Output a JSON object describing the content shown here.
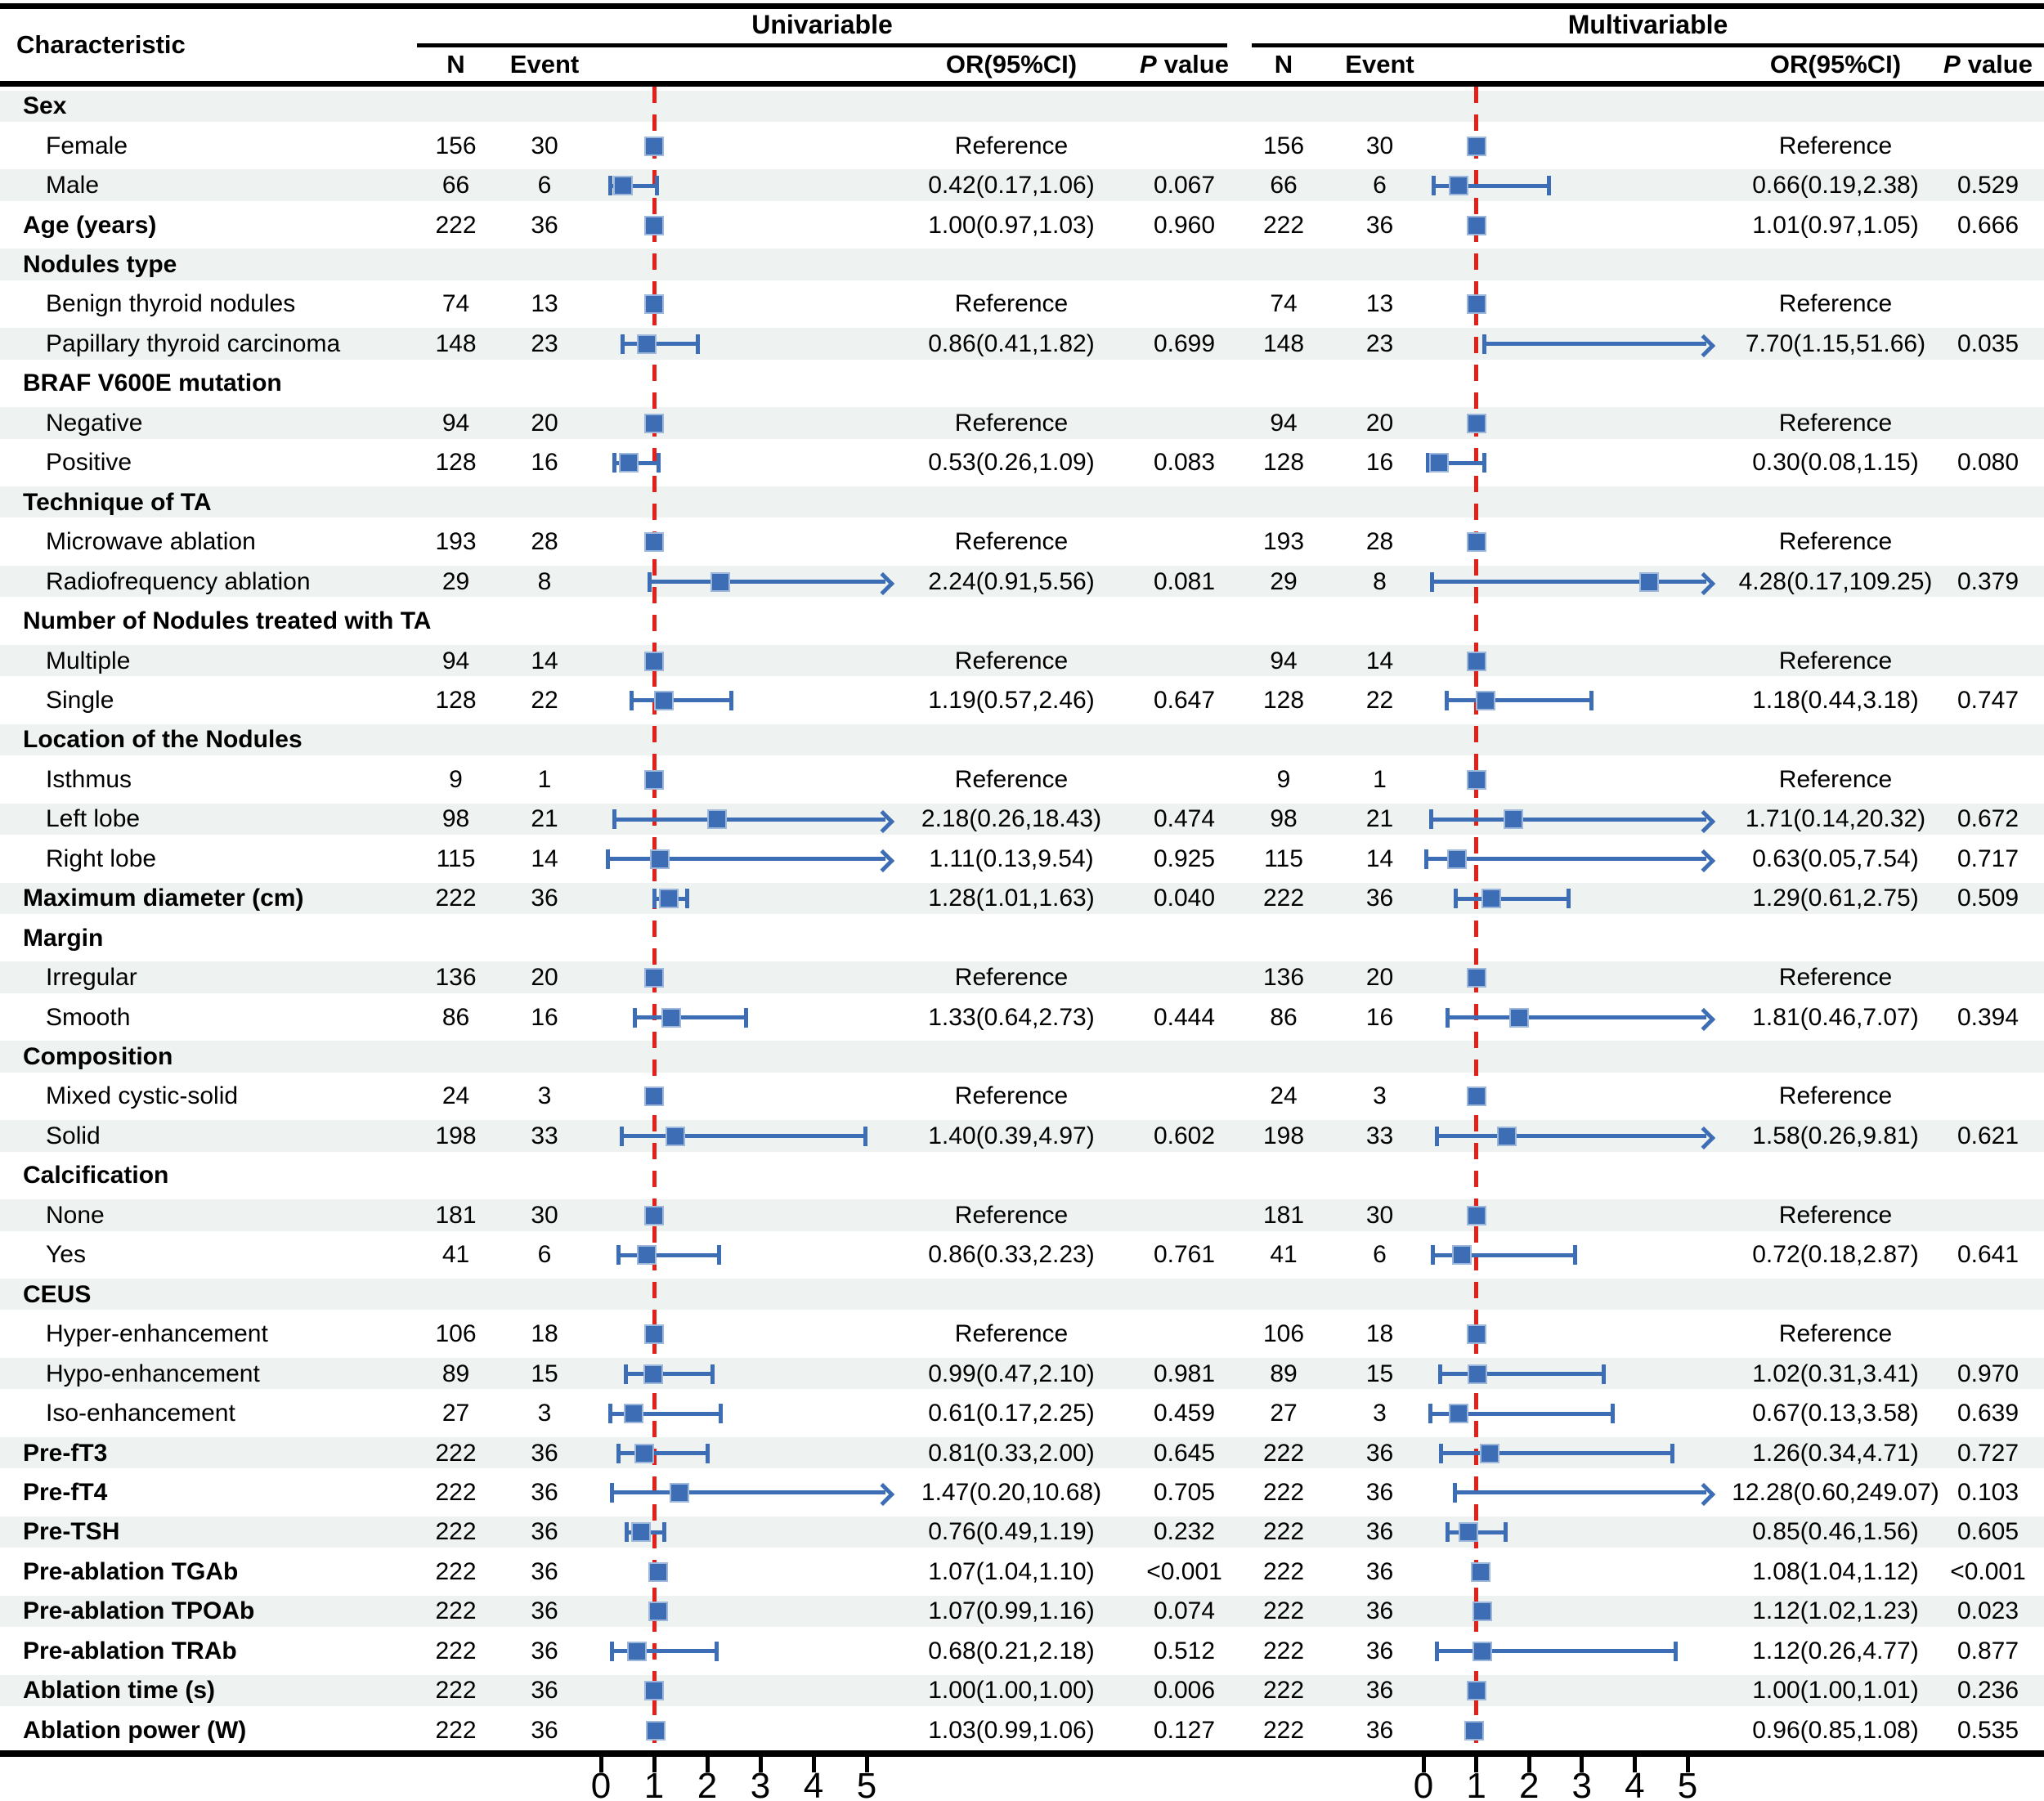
{
  "figure": {
    "char_header": "Characteristic",
    "uni_header": "Univariable",
    "multi_header": "Multivariable",
    "col_n": "N",
    "col_event": "Event",
    "col_or": "OR(95%CI)",
    "col_p_italic": "P",
    "col_p_rest": "value"
  },
  "chart_data": {
    "type": "forest",
    "panels": [
      "Univariable",
      "Multivariable"
    ],
    "axis": {
      "ticks": [
        0,
        1,
        2,
        3,
        4,
        5
      ],
      "min": 0,
      "max": 5,
      "reference_line": 1
    },
    "colors": {
      "marker": "#3c6db5",
      "ci": "#3c6db5",
      "reference_line": "#e32119",
      "stripe": "#eef2f1"
    },
    "rows": [
      {
        "label": "Sex",
        "style": "group"
      },
      {
        "label": "Female",
        "style": "item",
        "uni": {
          "n": "156",
          "event": "30",
          "or": "Reference",
          "p": "",
          "ref": true
        },
        "multi": {
          "n": "156",
          "event": "30",
          "or": "Reference",
          "p": "",
          "ref": true
        }
      },
      {
        "label": "Male",
        "style": "item",
        "uni": {
          "n": "66",
          "event": "6",
          "or": "0.42(0.17,1.06)",
          "p": "0.067",
          "est": 0.42,
          "lo": 0.17,
          "hi": 1.06
        },
        "multi": {
          "n": "66",
          "event": "6",
          "or": "0.66(0.19,2.38)",
          "p": "0.529",
          "est": 0.66,
          "lo": 0.19,
          "hi": 2.38
        }
      },
      {
        "label": "Age (years)",
        "style": "bold",
        "uni": {
          "n": "222",
          "event": "36",
          "or": "1.00(0.97,1.03)",
          "p": "0.960",
          "est": 1.0,
          "lo": 0.97,
          "hi": 1.03
        },
        "multi": {
          "n": "222",
          "event": "36",
          "or": "1.01(0.97,1.05)",
          "p": "0.666",
          "est": 1.01,
          "lo": 0.97,
          "hi": 1.05
        }
      },
      {
        "label": "Nodules type",
        "style": "group"
      },
      {
        "label": "Benign thyroid nodules",
        "style": "item",
        "uni": {
          "n": "74",
          "event": "13",
          "or": "Reference",
          "p": "",
          "ref": true
        },
        "multi": {
          "n": "74",
          "event": "13",
          "or": "Reference",
          "p": "",
          "ref": true
        }
      },
      {
        "label": "Papillary thyroid carcinoma",
        "style": "item",
        "uni": {
          "n": "148",
          "event": "23",
          "or": "0.86(0.41,1.82)",
          "p": "0.699",
          "est": 0.86,
          "lo": 0.41,
          "hi": 1.82
        },
        "multi": {
          "n": "148",
          "event": "23",
          "or": "7.70(1.15,51.66)",
          "p": "0.035",
          "est": 7.7,
          "lo": 1.15,
          "hi": 51.66
        }
      },
      {
        "label": "BRAF V600E mutation",
        "style": "group"
      },
      {
        "label": "Negative",
        "style": "item",
        "uni": {
          "n": "94",
          "event": "20",
          "or": "Reference",
          "p": "",
          "ref": true
        },
        "multi": {
          "n": "94",
          "event": "20",
          "or": "Reference",
          "p": "",
          "ref": true
        }
      },
      {
        "label": "Positive",
        "style": "item",
        "uni": {
          "n": "128",
          "event": "16",
          "or": "0.53(0.26,1.09)",
          "p": "0.083",
          "est": 0.53,
          "lo": 0.26,
          "hi": 1.09
        },
        "multi": {
          "n": "128",
          "event": "16",
          "or": "0.30(0.08,1.15)",
          "p": "0.080",
          "est": 0.3,
          "lo": 0.08,
          "hi": 1.15
        }
      },
      {
        "label": "Technique of TA",
        "style": "group"
      },
      {
        "label": "Microwave ablation",
        "style": "item",
        "uni": {
          "n": "193",
          "event": "28",
          "or": "Reference",
          "p": "",
          "ref": true
        },
        "multi": {
          "n": "193",
          "event": "28",
          "or": "Reference",
          "p": "",
          "ref": true
        }
      },
      {
        "label": "Radiofrequency ablation",
        "style": "item",
        "uni": {
          "n": "29",
          "event": "8",
          "or": "2.24(0.91,5.56)",
          "p": "0.081",
          "est": 2.24,
          "lo": 0.91,
          "hi": 5.56
        },
        "multi": {
          "n": "29",
          "event": "8",
          "or": "4.28(0.17,109.25)",
          "p": "0.379",
          "est": 4.28,
          "lo": 0.17,
          "hi": 109.25
        }
      },
      {
        "label": "Number of Nodules treated with TA",
        "style": "group"
      },
      {
        "label": "Multiple",
        "style": "item",
        "uni": {
          "n": "94",
          "event": "14",
          "or": "Reference",
          "p": "",
          "ref": true
        },
        "multi": {
          "n": "94",
          "event": "14",
          "or": "Reference",
          "p": "",
          "ref": true
        }
      },
      {
        "label": "Single",
        "style": "item",
        "uni": {
          "n": "128",
          "event": "22",
          "or": "1.19(0.57,2.46)",
          "p": "0.647",
          "est": 1.19,
          "lo": 0.57,
          "hi": 2.46
        },
        "multi": {
          "n": "128",
          "event": "22",
          "or": "1.18(0.44,3.18)",
          "p": "0.747",
          "est": 1.18,
          "lo": 0.44,
          "hi": 3.18
        }
      },
      {
        "label": "Location of the Nodules",
        "style": "group"
      },
      {
        "label": "Isthmus",
        "style": "item",
        "uni": {
          "n": "9",
          "event": "1",
          "or": "Reference",
          "p": "",
          "ref": true
        },
        "multi": {
          "n": "9",
          "event": "1",
          "or": "Reference",
          "p": "",
          "ref": true
        }
      },
      {
        "label": "Left lobe",
        "style": "item",
        "uni": {
          "n": "98",
          "event": "21",
          "or": "2.18(0.26,18.43)",
          "p": "0.474",
          "est": 2.18,
          "lo": 0.26,
          "hi": 18.43
        },
        "multi": {
          "n": "98",
          "event": "21",
          "or": "1.71(0.14,20.32)",
          "p": "0.672",
          "est": 1.71,
          "lo": 0.14,
          "hi": 20.32
        }
      },
      {
        "label": "Right lobe",
        "style": "item",
        "uni": {
          "n": "115",
          "event": "14",
          "or": "1.11(0.13,9.54)",
          "p": "0.925",
          "est": 1.11,
          "lo": 0.13,
          "hi": 9.54
        },
        "multi": {
          "n": "115",
          "event": "14",
          "or": "0.63(0.05,7.54)",
          "p": "0.717",
          "est": 0.63,
          "lo": 0.05,
          "hi": 7.54
        }
      },
      {
        "label": "Maximum diameter (cm)",
        "style": "bold",
        "uni": {
          "n": "222",
          "event": "36",
          "or": "1.28(1.01,1.63)",
          "p": "0.040",
          "est": 1.28,
          "lo": 1.01,
          "hi": 1.63
        },
        "multi": {
          "n": "222",
          "event": "36",
          "or": "1.29(0.61,2.75)",
          "p": "0.509",
          "est": 1.29,
          "lo": 0.61,
          "hi": 2.75
        }
      },
      {
        "label": "Margin",
        "style": "group"
      },
      {
        "label": "Irregular",
        "style": "item",
        "uni": {
          "n": "136",
          "event": "20",
          "or": "Reference",
          "p": "",
          "ref": true
        },
        "multi": {
          "n": "136",
          "event": "20",
          "or": "Reference",
          "p": "",
          "ref": true
        }
      },
      {
        "label": "Smooth",
        "style": "item",
        "uni": {
          "n": "86",
          "event": "16",
          "or": "1.33(0.64,2.73)",
          "p": "0.444",
          "est": 1.33,
          "lo": 0.64,
          "hi": 2.73
        },
        "multi": {
          "n": "86",
          "event": "16",
          "or": "1.81(0.46,7.07)",
          "p": "0.394",
          "est": 1.81,
          "lo": 0.46,
          "hi": 7.07
        }
      },
      {
        "label": "Composition",
        "style": "group"
      },
      {
        "label": "Mixed cystic-solid",
        "style": "item",
        "uni": {
          "n": "24",
          "event": "3",
          "or": "Reference",
          "p": "",
          "ref": true
        },
        "multi": {
          "n": "24",
          "event": "3",
          "or": "Reference",
          "p": "",
          "ref": true
        }
      },
      {
        "label": "Solid",
        "style": "item",
        "uni": {
          "n": "198",
          "event": "33",
          "or": "1.40(0.39,4.97)",
          "p": "0.602",
          "est": 1.4,
          "lo": 0.39,
          "hi": 4.97
        },
        "multi": {
          "n": "198",
          "event": "33",
          "or": "1.58(0.26,9.81)",
          "p": "0.621",
          "est": 1.58,
          "lo": 0.26,
          "hi": 9.81
        }
      },
      {
        "label": "Calcification",
        "style": "group"
      },
      {
        "label": "None",
        "style": "item",
        "uni": {
          "n": "181",
          "event": "30",
          "or": "Reference",
          "p": "",
          "ref": true
        },
        "multi": {
          "n": "181",
          "event": "30",
          "or": "Reference",
          "p": "",
          "ref": true
        }
      },
      {
        "label": "Yes",
        "style": "item",
        "uni": {
          "n": "41",
          "event": "6",
          "or": "0.86(0.33,2.23)",
          "p": "0.761",
          "est": 0.86,
          "lo": 0.33,
          "hi": 2.23
        },
        "multi": {
          "n": "41",
          "event": "6",
          "or": "0.72(0.18,2.87)",
          "p": "0.641",
          "est": 0.72,
          "lo": 0.18,
          "hi": 2.87
        }
      },
      {
        "label": "CEUS",
        "style": "group"
      },
      {
        "label": "Hyper-enhancement",
        "style": "item",
        "uni": {
          "n": "106",
          "event": "18",
          "or": "Reference",
          "p": "",
          "ref": true
        },
        "multi": {
          "n": "106",
          "event": "18",
          "or": "Reference",
          "p": "",
          "ref": true
        }
      },
      {
        "label": "Hypo-enhancement",
        "style": "item",
        "uni": {
          "n": "89",
          "event": "15",
          "or": "0.99(0.47,2.10)",
          "p": "0.981",
          "est": 0.99,
          "lo": 0.47,
          "hi": 2.1
        },
        "multi": {
          "n": "89",
          "event": "15",
          "or": "1.02(0.31,3.41)",
          "p": "0.970",
          "est": 1.02,
          "lo": 0.31,
          "hi": 3.41
        }
      },
      {
        "label": "Iso-enhancement",
        "style": "item",
        "uni": {
          "n": "27",
          "event": "3",
          "or": "0.61(0.17,2.25)",
          "p": "0.459",
          "est": 0.61,
          "lo": 0.17,
          "hi": 2.25
        },
        "multi": {
          "n": "27",
          "event": "3",
          "or": "0.67(0.13,3.58)",
          "p": "0.639",
          "est": 0.67,
          "lo": 0.13,
          "hi": 3.58
        }
      },
      {
        "label": "Pre-fT3",
        "style": "bold",
        "uni": {
          "n": "222",
          "event": "36",
          "or": "0.81(0.33,2.00)",
          "p": "0.645",
          "est": 0.81,
          "lo": 0.33,
          "hi": 2.0
        },
        "multi": {
          "n": "222",
          "event": "36",
          "or": "1.26(0.34,4.71)",
          "p": "0.727",
          "est": 1.26,
          "lo": 0.34,
          "hi": 4.71
        }
      },
      {
        "label": "Pre-fT4",
        "style": "bold",
        "uni": {
          "n": "222",
          "event": "36",
          "or": "1.47(0.20,10.68)",
          "p": "0.705",
          "est": 1.47,
          "lo": 0.2,
          "hi": 10.68
        },
        "multi": {
          "n": "222",
          "event": "36",
          "or": "12.28(0.60,249.07)",
          "p": "0.103",
          "est": 12.28,
          "lo": 0.6,
          "hi": 249.07
        }
      },
      {
        "label": "Pre-TSH",
        "style": "bold",
        "uni": {
          "n": "222",
          "event": "36",
          "or": "0.76(0.49,1.19)",
          "p": "0.232",
          "est": 0.76,
          "lo": 0.49,
          "hi": 1.19
        },
        "multi": {
          "n": "222",
          "event": "36",
          "or": "0.85(0.46,1.56)",
          "p": "0.605",
          "est": 0.85,
          "lo": 0.46,
          "hi": 1.56
        }
      },
      {
        "label": "Pre-ablation TGAb",
        "style": "bold",
        "uni": {
          "n": "222",
          "event": "36",
          "or": "1.07(1.04,1.10)",
          "p": "<0.001",
          "est": 1.07,
          "lo": 1.04,
          "hi": 1.1
        },
        "multi": {
          "n": "222",
          "event": "36",
          "or": "1.08(1.04,1.12)",
          "p": "<0.001",
          "est": 1.08,
          "lo": 1.04,
          "hi": 1.12
        }
      },
      {
        "label": "Pre-ablation TPOAb",
        "style": "bold",
        "uni": {
          "n": "222",
          "event": "36",
          "or": "1.07(0.99,1.16)",
          "p": "0.074",
          "est": 1.07,
          "lo": 0.99,
          "hi": 1.16
        },
        "multi": {
          "n": "222",
          "event": "36",
          "or": "1.12(1.02,1.23)",
          "p": "0.023",
          "est": 1.12,
          "lo": 1.02,
          "hi": 1.23
        }
      },
      {
        "label": "Pre-ablation TRAb",
        "style": "bold",
        "uni": {
          "n": "222",
          "event": "36",
          "or": "0.68(0.21,2.18)",
          "p": "0.512",
          "est": 0.68,
          "lo": 0.21,
          "hi": 2.18
        },
        "multi": {
          "n": "222",
          "event": "36",
          "or": "1.12(0.26,4.77)",
          "p": "0.877",
          "est": 1.12,
          "lo": 0.26,
          "hi": 4.77
        }
      },
      {
        "label": "Ablation time (s)",
        "style": "bold",
        "uni": {
          "n": "222",
          "event": "36",
          "or": "1.00(1.00,1.00)",
          "p": "0.006",
          "est": 1.0,
          "lo": 1.0,
          "hi": 1.0
        },
        "multi": {
          "n": "222",
          "event": "36",
          "or": "1.00(1.00,1.01)",
          "p": "0.236",
          "est": 1.0,
          "lo": 1.0,
          "hi": 1.01
        }
      },
      {
        "label": "Ablation power (W)",
        "style": "bold",
        "uni": {
          "n": "222",
          "event": "36",
          "or": "1.03(0.99,1.06)",
          "p": "0.127",
          "est": 1.03,
          "lo": 0.99,
          "hi": 1.06
        },
        "multi": {
          "n": "222",
          "event": "36",
          "or": "0.96(0.85,1.08)",
          "p": "0.535",
          "est": 0.96,
          "lo": 0.85,
          "hi": 1.08
        }
      }
    ]
  }
}
